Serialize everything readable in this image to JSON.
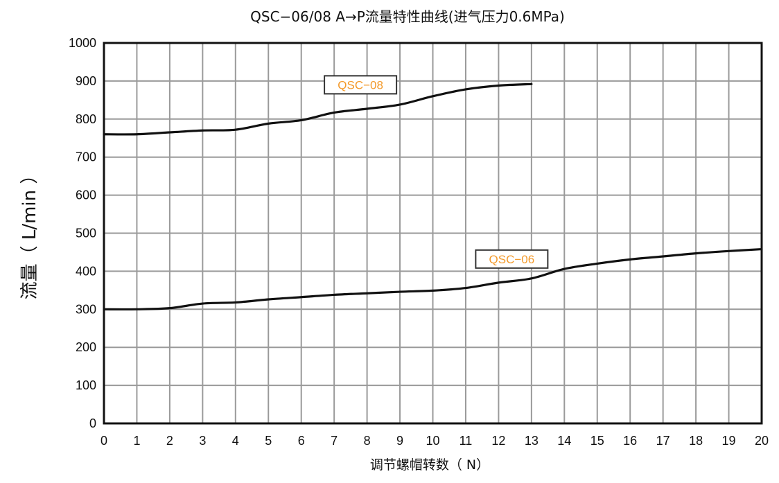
{
  "chart_data": {
    "type": "line",
    "title": "QSC−06/08  A→P流量特性曲线(进气压力0.6MPa)",
    "xlabel": "调节螺帽转数（ N）",
    "ylabel": "流量（ L/min ）",
    "xlim": [
      0,
      20
    ],
    "ylim": [
      0,
      1000
    ],
    "x_ticks": [
      "0",
      "1",
      "2",
      "3",
      "4",
      "5",
      "6",
      "7",
      "8",
      "9",
      "10",
      "11",
      "12",
      "13",
      "14",
      "15",
      "16",
      "17",
      "18",
      "19",
      "20"
    ],
    "y_ticks": [
      "0",
      "100",
      "200",
      "300",
      "400",
      "500",
      "600",
      "700",
      "800",
      "900",
      "1000"
    ],
    "grid": true,
    "legend": "inline labels near curves",
    "series": [
      {
        "name": "QSC−08",
        "color": "#111111",
        "label_color": "#f39a2b",
        "x": [
          0,
          1,
          2,
          3,
          4,
          5,
          6,
          7,
          8,
          9,
          10,
          11,
          12,
          13
        ],
        "values": [
          760,
          760,
          765,
          770,
          772,
          788,
          797,
          817,
          827,
          838,
          860,
          878,
          888,
          892
        ]
      },
      {
        "name": "QSC−06",
        "color": "#111111",
        "label_color": "#f39a2b",
        "x": [
          0,
          1,
          2,
          3,
          4,
          5,
          6,
          7,
          8,
          9,
          10,
          11,
          12,
          13,
          14,
          15,
          16,
          17,
          18,
          19,
          20
        ],
        "values": [
          300,
          300,
          303,
          315,
          318,
          326,
          332,
          338,
          342,
          346,
          349,
          356,
          370,
          381,
          406,
          420,
          431,
          439,
          447,
          453,
          458
        ]
      }
    ]
  }
}
